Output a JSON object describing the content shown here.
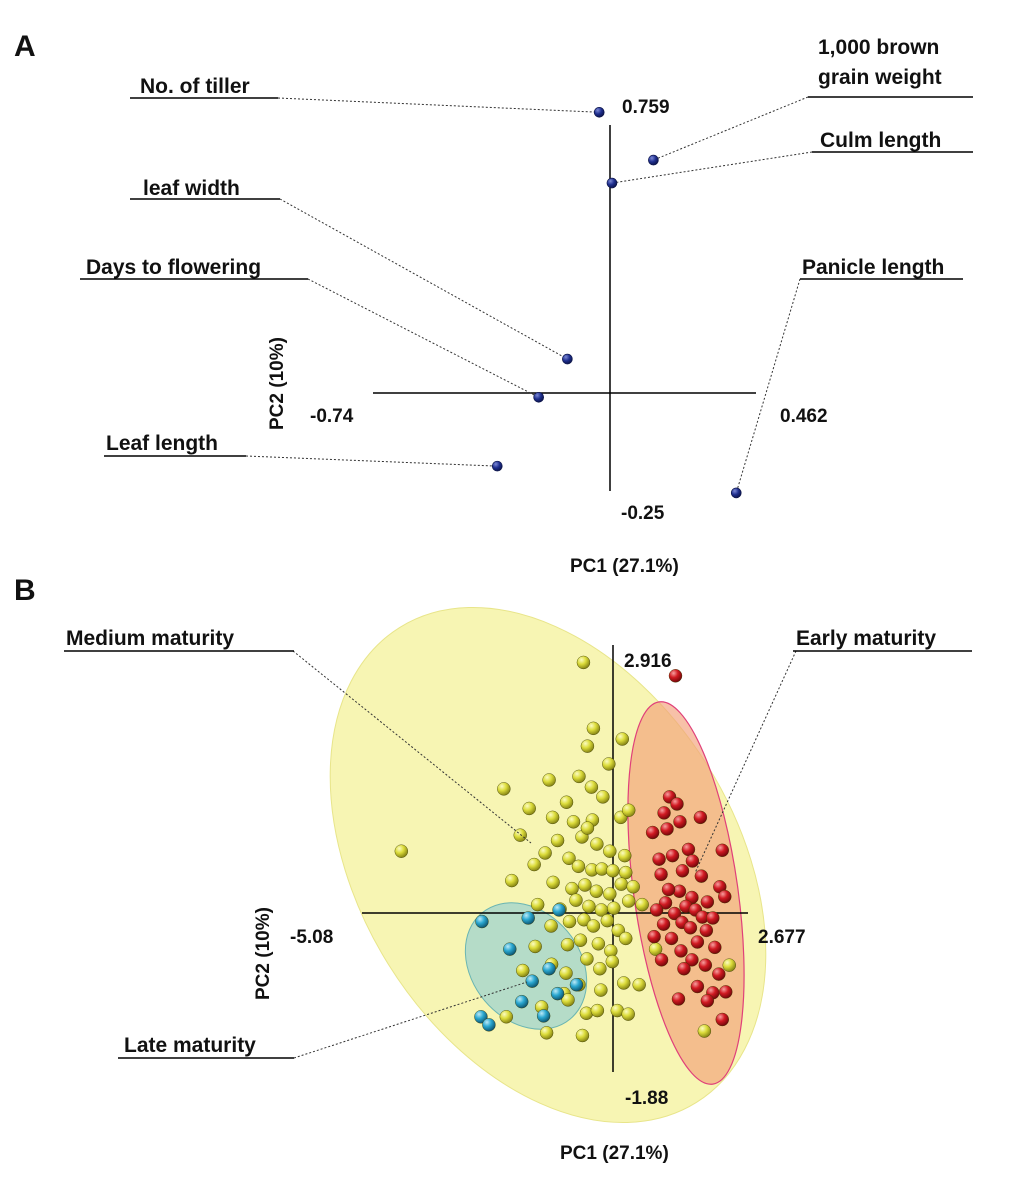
{
  "colors": {
    "loading_point": "#1f2f8f",
    "early": "#d11a22",
    "medium": "#dcdc3a",
    "late": "#2aa7d0",
    "ellipse_medium": "#f6f3a6",
    "ellipse_early": "#f2a07a",
    "ellipse_late": "#9fd3cf"
  },
  "chart_data": [
    {
      "panel": "A",
      "type": "scatter",
      "xlabel": "PC1 (27.1%)",
      "ylabel": "PC2 (10%)",
      "xlim": [
        -0.74,
        0.462
      ],
      "ylim": [
        -0.25,
        0.759
      ],
      "tick_labels": {
        "x_min": "-0.74",
        "x_max": "0.462",
        "y_min": "-0.25",
        "y_max": "0.759"
      },
      "points": [
        {
          "label": "No. of tiller",
          "x": -0.03,
          "y": 0.74
        },
        {
          "label": "1,000 brown grain weight",
          "x": 0.14,
          "y": 0.615
        },
        {
          "label": "Culm length",
          "x": 0.01,
          "y": 0.555
        },
        {
          "label": "leaf width",
          "x": -0.13,
          "y": 0.095
        },
        {
          "label": "Days to flowering",
          "x": -0.22,
          "y": -0.005
        },
        {
          "label": "Leaf length",
          "x": -0.35,
          "y": -0.185
        },
        {
          "label": "Panicle length",
          "x": 0.4,
          "y": -0.255
        }
      ]
    },
    {
      "panel": "B",
      "type": "scatter",
      "xlabel": "PC1 (27.1%)",
      "ylabel": "PC2 (10%)",
      "xlim": [
        -5.08,
        2.677
      ],
      "ylim": [
        -1.88,
        2.916
      ],
      "tick_labels": {
        "x_min": "-5.08",
        "x_max": "2.677",
        "y_min": "-1.88",
        "y_max": "2.916"
      },
      "groups": [
        {
          "name": "Early maturity",
          "color": "#d11a22",
          "ellipse": {
            "cx": 1.06,
            "cy": 0.105,
            "rx": 1.02,
            "ry": 2.31,
            "rotation_deg": -8
          },
          "points": [
            [
              1.22,
              2.57
            ],
            [
              1.1,
              1.21
            ],
            [
              0.99,
              1.03
            ],
            [
              1.25,
              1.13
            ],
            [
              1.72,
              0.98
            ],
            [
              1.31,
              0.93
            ],
            [
              0.76,
              0.81
            ],
            [
              1.05,
              0.85
            ],
            [
              1.48,
              0.62
            ],
            [
              1.16,
              0.55
            ],
            [
              0.89,
              0.51
            ],
            [
              1.56,
              0.49
            ],
            [
              2.16,
              0.61
            ],
            [
              1.36,
              0.38
            ],
            [
              0.93,
              0.34
            ],
            [
              1.74,
              0.32
            ],
            [
              2.11,
              0.2
            ],
            [
              1.3,
              0.15
            ],
            [
              1.08,
              0.17
            ],
            [
              1.55,
              0.08
            ],
            [
              1.86,
              0.03
            ],
            [
              1.02,
              0.02
            ],
            [
              1.43,
              -0.02
            ],
            [
              1.62,
              -0.06
            ],
            [
              2.21,
              0.09
            ],
            [
              0.84,
              -0.06
            ],
            [
              1.2,
              -0.1
            ],
            [
              1.76,
              -0.14
            ],
            [
              1.97,
              -0.15
            ],
            [
              1.35,
              -0.2
            ],
            [
              0.98,
              -0.22
            ],
            [
              1.52,
              -0.26
            ],
            [
              1.84,
              -0.29
            ],
            [
              1.14,
              -0.38
            ],
            [
              1.66,
              -0.42
            ],
            [
              0.79,
              -0.36
            ],
            [
              1.33,
              -0.52
            ],
            [
              2.01,
              -0.48
            ],
            [
              1.55,
              -0.62
            ],
            [
              0.94,
              -0.62
            ],
            [
              1.82,
              -0.68
            ],
            [
              1.39,
              -0.72
            ],
            [
              2.09,
              -0.78
            ],
            [
              1.66,
              -0.92
            ],
            [
              1.97,
              -0.99
            ],
            [
              2.23,
              -0.98
            ],
            [
              1.28,
              -1.06
            ],
            [
              1.86,
              -1.08
            ],
            [
              2.16,
              -1.29
            ]
          ]
        },
        {
          "name": "Medium maturity",
          "color": "#dcdc3a",
          "ellipse": {
            "cx": -1.02,
            "cy": 0.255,
            "rx": 3.76,
            "ry": 2.89,
            "rotation_deg": 32
          },
          "points": [
            [
              -4.29,
              0.6
            ],
            [
              -0.63,
              2.72
            ],
            [
              -0.43,
              1.98
            ],
            [
              -0.55,
              1.78
            ],
            [
              0.15,
              1.86
            ],
            [
              -0.12,
              1.58
            ],
            [
              -1.32,
              1.4
            ],
            [
              -2.23,
              1.3
            ],
            [
              -0.72,
              1.44
            ],
            [
              -0.47,
              1.32
            ],
            [
              -0.97,
              1.15
            ],
            [
              -0.24,
              1.21
            ],
            [
              -1.72,
              1.08
            ],
            [
              -1.25,
              0.98
            ],
            [
              -0.83,
              0.93
            ],
            [
              -0.45,
              0.95
            ],
            [
              0.12,
              0.98
            ],
            [
              0.28,
              1.06
            ],
            [
              -0.66,
              0.76
            ],
            [
              -0.55,
              0.86
            ],
            [
              -1.9,
              0.78
            ],
            [
              -1.15,
              0.72
            ],
            [
              -1.4,
              0.58
            ],
            [
              -0.92,
              0.52
            ],
            [
              -0.36,
              0.68
            ],
            [
              -0.1,
              0.6
            ],
            [
              0.2,
              0.55
            ],
            [
              -1.62,
              0.45
            ],
            [
              -0.73,
              0.43
            ],
            [
              -0.46,
              0.39
            ],
            [
              -0.26,
              0.4
            ],
            [
              -0.04,
              0.38
            ],
            [
              0.22,
              0.36
            ],
            [
              -2.07,
              0.27
            ],
            [
              -1.24,
              0.25
            ],
            [
              -0.86,
              0.18
            ],
            [
              -0.6,
              0.22
            ],
            [
              -0.37,
              0.15
            ],
            [
              -0.1,
              0.12
            ],
            [
              0.13,
              0.23
            ],
            [
              0.37,
              0.2
            ],
            [
              -1.55,
              0.0
            ],
            [
              -1.1,
              -0.05
            ],
            [
              -0.78,
              0.05
            ],
            [
              -0.52,
              -0.02
            ],
            [
              -0.27,
              -0.06
            ],
            [
              -0.02,
              -0.04
            ],
            [
              0.28,
              0.04
            ],
            [
              0.55,
              0.0
            ],
            [
              -1.28,
              -0.24
            ],
            [
              -0.91,
              -0.19
            ],
            [
              -0.62,
              -0.17
            ],
            [
              -0.43,
              -0.24
            ],
            [
              -0.15,
              -0.18
            ],
            [
              0.07,
              -0.29
            ],
            [
              -1.6,
              -0.47
            ],
            [
              -0.95,
              -0.45
            ],
            [
              -0.69,
              -0.4
            ],
            [
              -0.33,
              -0.44
            ],
            [
              -0.08,
              -0.52
            ],
            [
              0.22,
              -0.38
            ],
            [
              -1.85,
              -0.74
            ],
            [
              -1.27,
              -0.67
            ],
            [
              -0.98,
              -0.77
            ],
            [
              -0.56,
              -0.61
            ],
            [
              -0.3,
              -0.72
            ],
            [
              -0.05,
              -0.64
            ],
            [
              -1.02,
              -1.0
            ],
            [
              -0.72,
              -0.9
            ],
            [
              -0.28,
              -0.96
            ],
            [
              0.18,
              -0.88
            ],
            [
              0.49,
              -0.9
            ],
            [
              -1.47,
              -1.15
            ],
            [
              -0.94,
              -1.07
            ],
            [
              -0.57,
              -1.22
            ],
            [
              -0.35,
              -1.19
            ],
            [
              0.05,
              -1.19
            ],
            [
              0.27,
              -1.23
            ],
            [
              -2.18,
              -1.26
            ],
            [
              -1.37,
              -1.44
            ],
            [
              -0.65,
              -1.47
            ],
            [
              1.8,
              -1.42
            ],
            [
              0.82,
              -0.5
            ],
            [
              2.3,
              -0.68
            ]
          ]
        },
        {
          "name": "Late maturity",
          "color": "#2aa7d0",
          "ellipse": {
            "cx": -1.6,
            "cy": -0.7,
            "rx": 1.09,
            "ry": 0.82,
            "rotation_deg": 50
          },
          "points": [
            [
              -2.67,
              -0.19
            ],
            [
              -1.74,
              -0.15
            ],
            [
              -1.12,
              -0.06
            ],
            [
              -2.11,
              -0.5
            ],
            [
              -1.32,
              -0.72
            ],
            [
              -1.66,
              -0.86
            ],
            [
              -0.77,
              -0.9
            ],
            [
              -1.15,
              -1.0
            ],
            [
              -1.87,
              -1.09
            ],
            [
              -2.69,
              -1.26
            ],
            [
              -2.53,
              -1.35
            ],
            [
              -1.43,
              -1.25
            ]
          ]
        }
      ],
      "annotations": [
        {
          "text": "Medium maturity",
          "points_to": "Medium maturity"
        },
        {
          "text": "Early maturity",
          "points_to": "Early maturity"
        },
        {
          "text": "Late maturity",
          "points_to": "Late maturity"
        }
      ]
    }
  ]
}
